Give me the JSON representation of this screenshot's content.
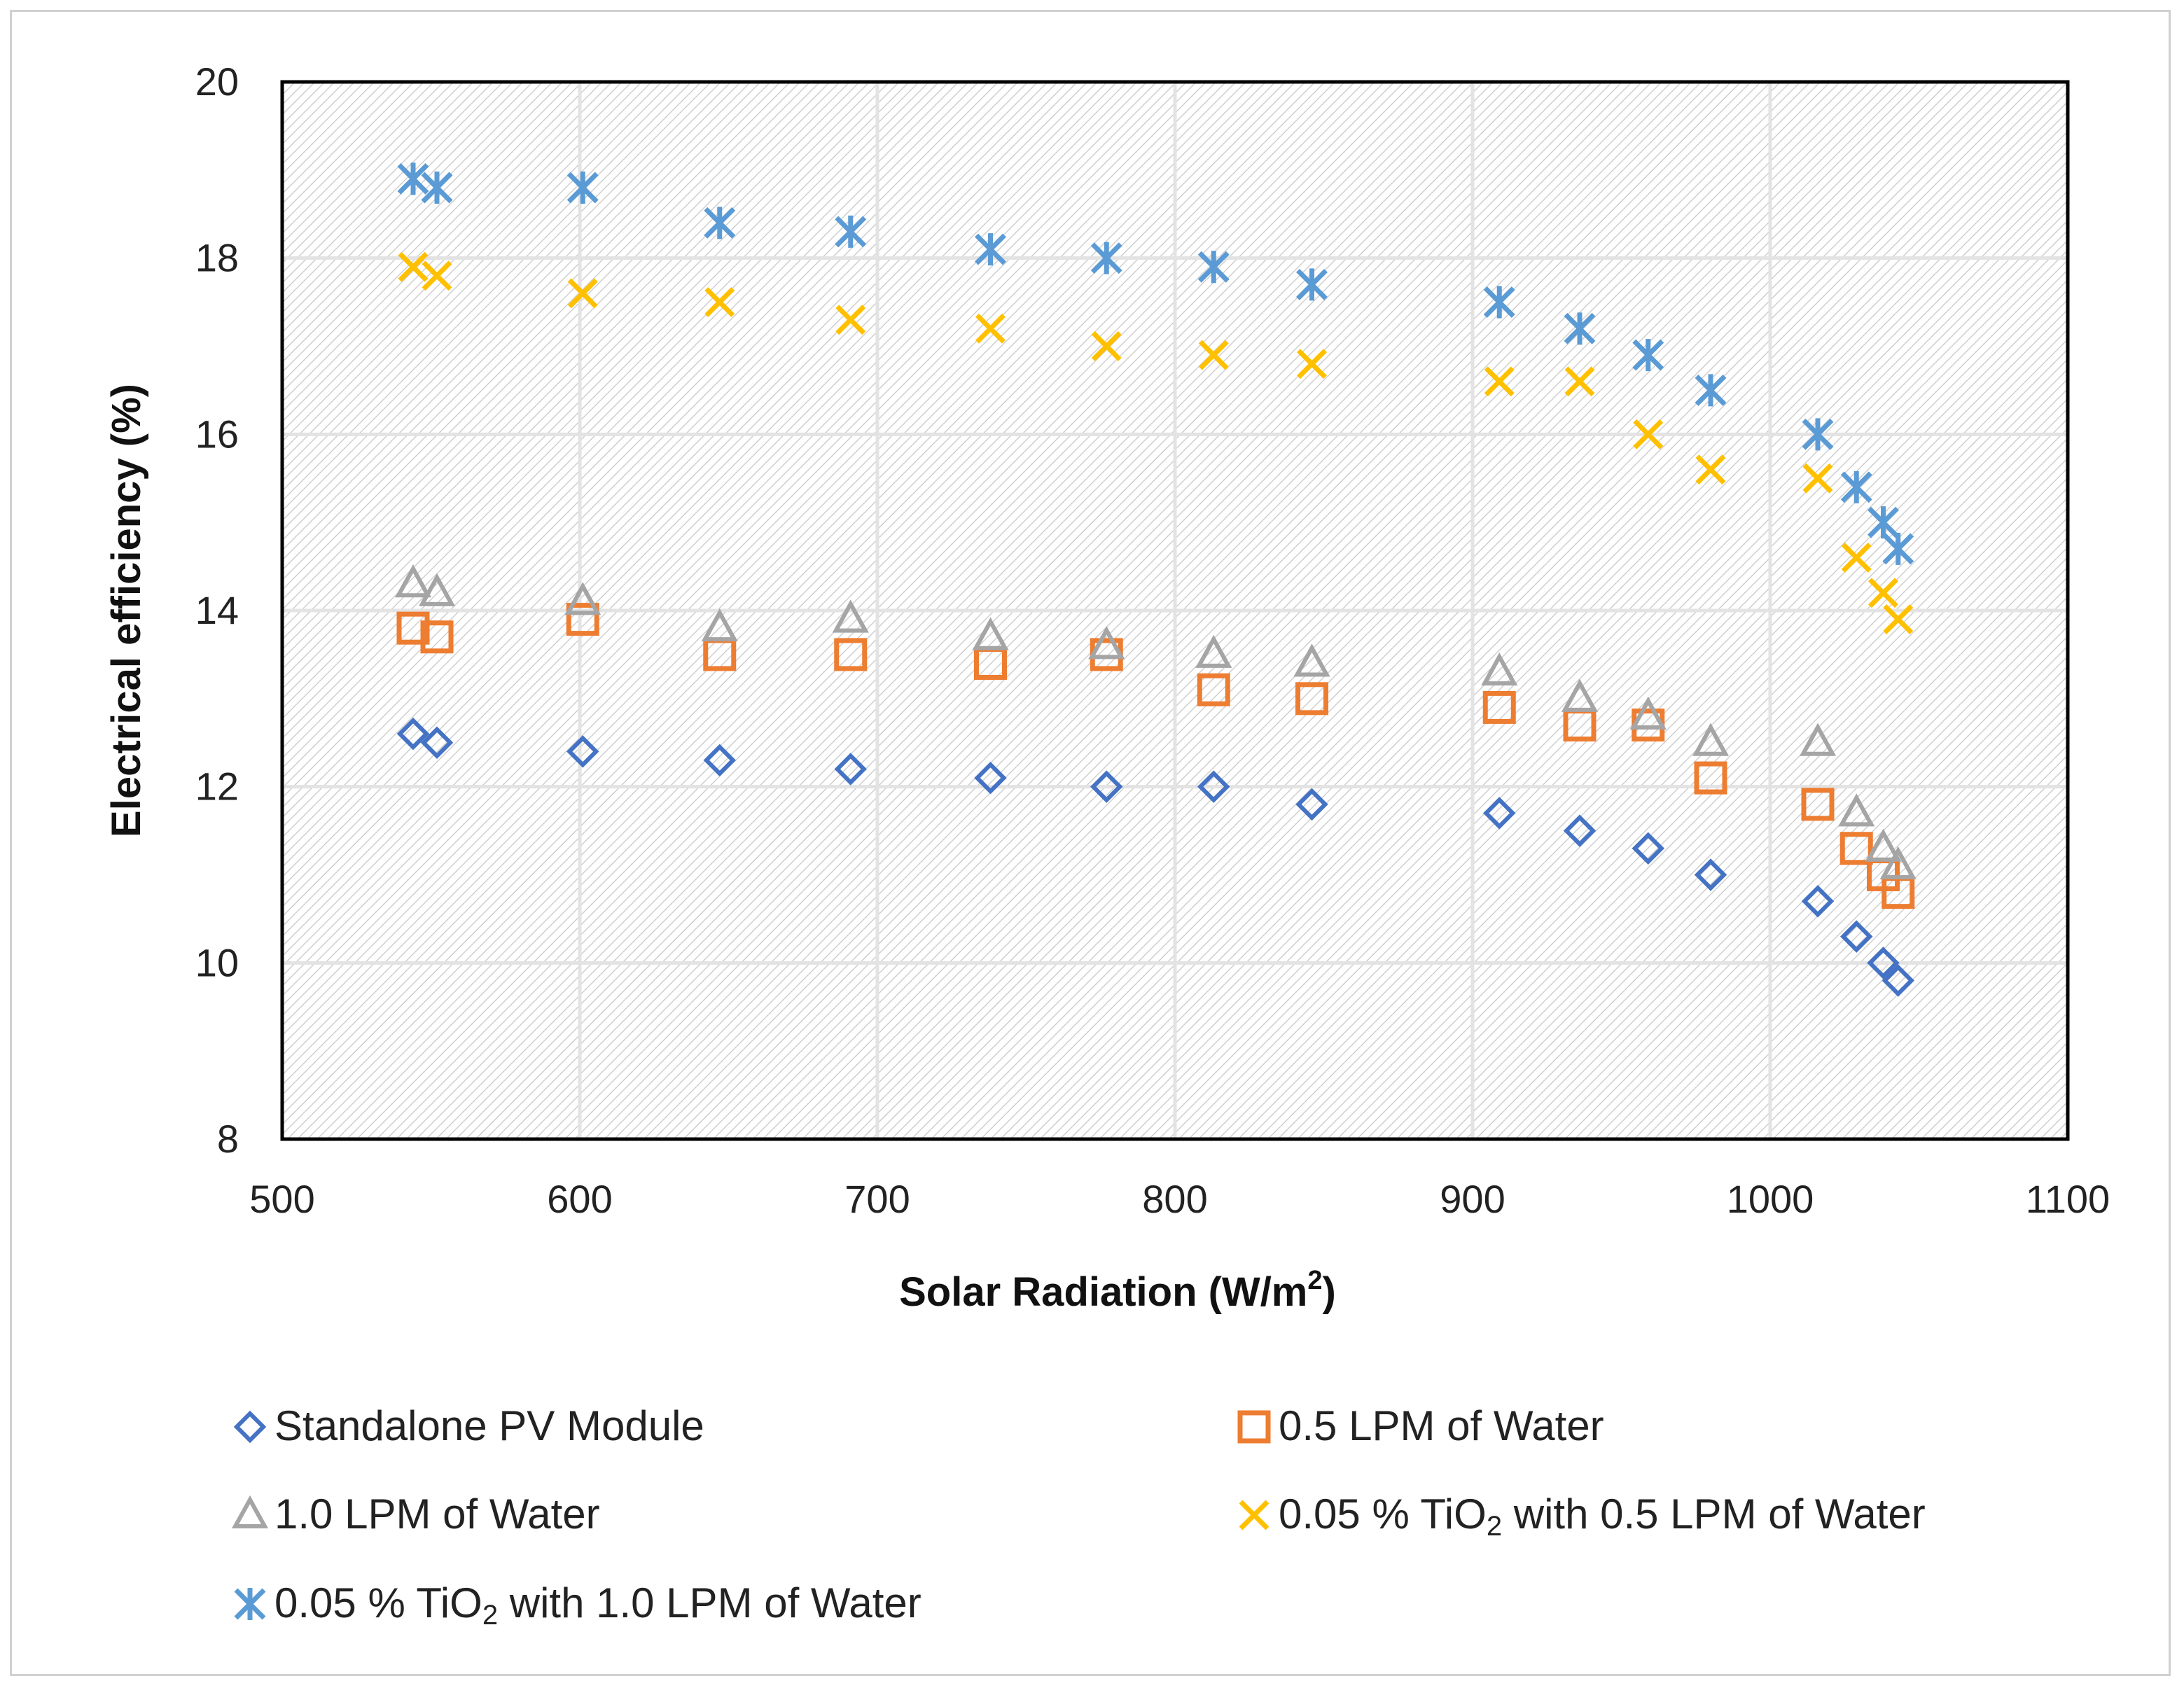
{
  "chart_data": {
    "type": "scatter",
    "title": "",
    "xlabel": "Solar Radiation (W/m2)",
    "xlabel_main": "Solar Radiation (W/m",
    "xlabel_sup": "2",
    "xlabel_end": ")",
    "ylabel": "Electrical efficiency (%)",
    "xlim": [
      500,
      1100
    ],
    "ylim": [
      8,
      20
    ],
    "xticks": [
      500,
      600,
      700,
      800,
      900,
      1000,
      1100
    ],
    "yticks": [
      8,
      10,
      12,
      14,
      16,
      18,
      20
    ],
    "grid": true,
    "legend_position": "bottom",
    "series": [
      {
        "name": "Standalone PV Module",
        "marker": "diamond",
        "color": "#4472C4",
        "x": [
          544,
          552,
          601,
          647,
          691,
          738,
          777,
          813,
          846,
          909,
          936,
          959,
          980,
          1016,
          1029,
          1038,
          1043
        ],
        "y": [
          12.6,
          12.5,
          12.4,
          12.3,
          12.2,
          12.1,
          12.0,
          12.0,
          11.8,
          11.7,
          11.5,
          11.3,
          11.0,
          10.7,
          10.3,
          10.0,
          9.8
        ]
      },
      {
        "name": "0.5 LPM of Water",
        "marker": "square",
        "color": "#ED7D31",
        "x": [
          544,
          552,
          601,
          647,
          691,
          738,
          777,
          813,
          846,
          909,
          936,
          959,
          980,
          1016,
          1029,
          1038,
          1043
        ],
        "y": [
          13.8,
          13.7,
          13.9,
          13.5,
          13.5,
          13.4,
          13.5,
          13.1,
          13.0,
          12.9,
          12.7,
          12.7,
          12.1,
          11.8,
          11.3,
          11.0,
          10.8
        ]
      },
      {
        "name": "1.0 LPM of Water",
        "marker": "triangle",
        "color": "#A5A5A5",
        "x": [
          544,
          552,
          601,
          647,
          691,
          738,
          777,
          813,
          846,
          909,
          936,
          959,
          980,
          1016,
          1029,
          1038,
          1043
        ],
        "y": [
          14.3,
          14.2,
          14.1,
          13.8,
          13.9,
          13.7,
          13.6,
          13.5,
          13.4,
          13.3,
          13.0,
          12.8,
          12.5,
          12.5,
          11.7,
          11.3,
          11.1
        ]
      },
      {
        "name": "0.05 % TiO2 with 0.5 LPM of Water",
        "name_main": "0.05 % TiO",
        "name_sub": "2",
        "name_end": " with 0.5 LPM of Water",
        "marker": "x",
        "color": "#FFC000",
        "x": [
          544,
          552,
          601,
          647,
          691,
          738,
          777,
          813,
          846,
          909,
          936,
          959,
          980,
          1016,
          1029,
          1038,
          1043
        ],
        "y": [
          17.9,
          17.8,
          17.6,
          17.5,
          17.3,
          17.2,
          17.0,
          16.9,
          16.8,
          16.6,
          16.6,
          16.0,
          15.6,
          15.5,
          14.6,
          14.2,
          13.9
        ]
      },
      {
        "name": "0.05 % TiO2 with 1.0 LPM of Water",
        "name_main": "0.05 % TiO",
        "name_sub": "2",
        "name_end": " with 1.0 LPM of Water",
        "marker": "asterisk",
        "color": "#5B9BD5",
        "x": [
          544,
          552,
          601,
          647,
          691,
          738,
          777,
          813,
          846,
          909,
          936,
          959,
          980,
          1016,
          1029,
          1038,
          1043
        ],
        "y": [
          18.9,
          18.8,
          18.8,
          18.4,
          18.3,
          18.1,
          18.0,
          17.9,
          17.7,
          17.5,
          17.2,
          16.9,
          16.5,
          16.0,
          15.4,
          15.0,
          14.7
        ]
      }
    ]
  }
}
